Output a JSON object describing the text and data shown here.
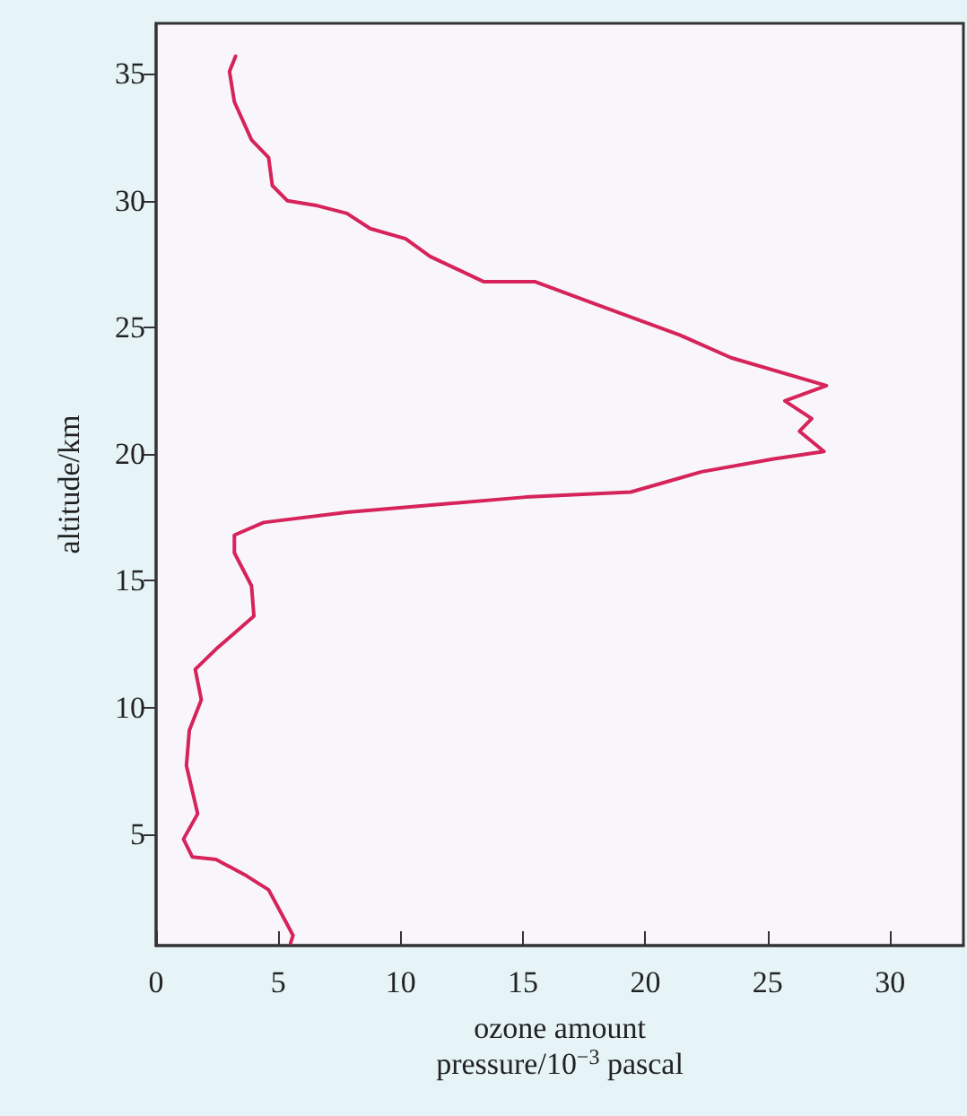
{
  "chart_data": {
    "type": "line",
    "xlabel": "ozone amount\npressure/10$^{−3}$ pascal",
    "ylabel": "altitude/km",
    "x": [
      3.25,
      3.0,
      3.2,
      3.9,
      4.6,
      4.75,
      5.36,
      6.6,
      7.8,
      8.75,
      10.2,
      11.2,
      13.4,
      15.5,
      18.0,
      21.4,
      23.5,
      27.4,
      25.7,
      26.8,
      26.3,
      27.3,
      25.2,
      22.3,
      19.4,
      15.1,
      7.8,
      4.4,
      3.2,
      3.2,
      3.9,
      4.0,
      2.45,
      1.6,
      1.85,
      1.36,
      1.24,
      1.7,
      1.12,
      1.48,
      2.45,
      3.7,
      4.6,
      5.1,
      5.6,
      5.5
    ],
    "series": [
      {
        "color": "#d6245a",
        "values": [
          35.7,
          35.1,
          33.9,
          32.4,
          31.7,
          30.6,
          30.0,
          29.8,
          29.5,
          28.9,
          28.5,
          27.8,
          26.8,
          26.8,
          25.9,
          24.7,
          23.8,
          22.7,
          22.1,
          21.4,
          20.9,
          20.1,
          19.8,
          19.3,
          18.5,
          18.3,
          17.7,
          17.3,
          16.8,
          16.1,
          14.8,
          13.6,
          12.3,
          11.5,
          10.3,
          9.1,
          7.7,
          5.8,
          4.8,
          4.1,
          4.0,
          3.35,
          2.8,
          1.9,
          1.0,
          0.7
        ]
      }
    ],
    "xlim": [
      0,
      33
    ],
    "xticks": [
      0,
      5,
      10,
      15,
      20,
      25,
      30
    ],
    "ylim": [
      0.6,
      37
    ],
    "yticks": [
      5,
      10,
      15,
      20,
      25,
      30,
      35
    ],
    "grid": false,
    "marker": "none",
    "line_style": "solid"
  }
}
